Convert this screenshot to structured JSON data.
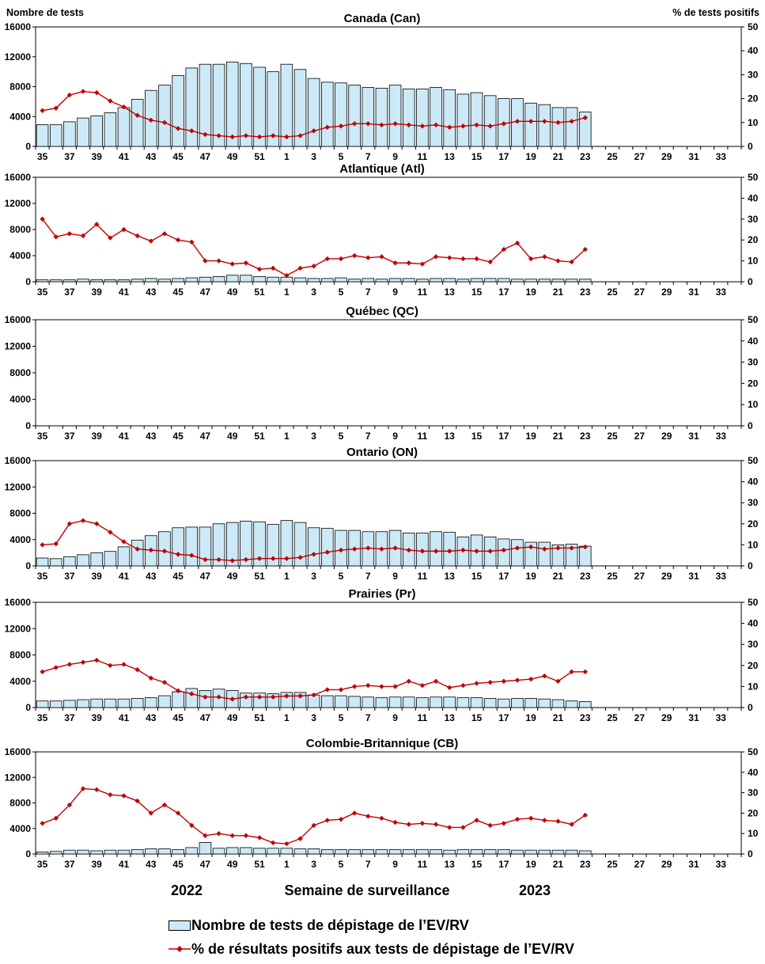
{
  "left_axis_title": "Nombre de tests",
  "right_axis_title": "% de tests positifs",
  "x_axis_title": "Semaine de surveillance",
  "year_start": "2022",
  "year_end": "2023",
  "legend": {
    "bars": "Nombre de tests de dépistage de l’EV/RV",
    "line": "% de résultats positifs aux tests de dépistage de l’EV/RV"
  },
  "colors": {
    "bar_fill": "#cce9f7",
    "bar_stroke": "#000000",
    "line": "#c00000"
  },
  "chart_data": [
    {
      "type": "bar+line",
      "title": "Canada (Can)",
      "categories": [
        35,
        36,
        37,
        38,
        39,
        40,
        41,
        42,
        43,
        44,
        45,
        46,
        47,
        48,
        49,
        50,
        51,
        52,
        1,
        2,
        3,
        4,
        5,
        6,
        7,
        8,
        9,
        10,
        11,
        12,
        13,
        14,
        15,
        16,
        17,
        18,
        19,
        20,
        21,
        22,
        23,
        24,
        25,
        26,
        27,
        28,
        29,
        30,
        31,
        32,
        33,
        34
      ],
      "x_tick_labels": [
        "35",
        "37",
        "39",
        "41",
        "43",
        "45",
        "47",
        "49",
        "51",
        "1",
        "3",
        "5",
        "7",
        "9",
        "11",
        "13",
        "15",
        "17",
        "19",
        "21",
        "23",
        "25",
        "27",
        "29",
        "31",
        "33"
      ],
      "left_ticks": [
        "0",
        "4000",
        "8000",
        "12000",
        "16000"
      ],
      "right_ticks": [
        "0",
        "10",
        "20",
        "30",
        "40",
        "50"
      ],
      "ylim_left": [
        0,
        16000
      ],
      "ylim_right": [
        0,
        50
      ],
      "tests": [
        2900,
        2900,
        3300,
        3800,
        4100,
        4500,
        5200,
        6300,
        7500,
        8200,
        9500,
        10500,
        11000,
        11000,
        11300,
        11100,
        10600,
        10000,
        11000,
        10300,
        9100,
        8600,
        8500,
        8200,
        7900,
        7800,
        8200,
        7700,
        7700,
        7900,
        7600,
        7000,
        7200,
        6800,
        6400,
        6400,
        5800,
        5600,
        5200,
        5200,
        4600
      ],
      "percent_positive": [
        15,
        16,
        21.5,
        23,
        22.5,
        19,
        16.5,
        13,
        11,
        10,
        7.5,
        6.5,
        5,
        4.5,
        4,
        4.5,
        4,
        4.5,
        4,
        4.5,
        6.5,
        8,
        8.5,
        9.5,
        9.5,
        9,
        9.5,
        9,
        8.5,
        9,
        8,
        8.5,
        9,
        8.5,
        9.5,
        10.5,
        10.5,
        10.5,
        10,
        10.5,
        12
      ]
    },
    {
      "type": "bar+line",
      "title": "Atlantique (Atl)",
      "categories": [
        35,
        36,
        37,
        38,
        39,
        40,
        41,
        42,
        43,
        44,
        45,
        46,
        47,
        48,
        49,
        50,
        51,
        52,
        1,
        2,
        3,
        4,
        5,
        6,
        7,
        8,
        9,
        10,
        11,
        12,
        13,
        14,
        15,
        16,
        17,
        18,
        19,
        20,
        21,
        22,
        23,
        24,
        25,
        26,
        27,
        28,
        29,
        30,
        31,
        32,
        33,
        34
      ],
      "x_tick_labels": [
        "35",
        "37",
        "39",
        "41",
        "43",
        "45",
        "47",
        "49",
        "51",
        "1",
        "3",
        "5",
        "7",
        "9",
        "11",
        "13",
        "15",
        "17",
        "19",
        "21",
        "23",
        "25",
        "27",
        "29",
        "31",
        "33"
      ],
      "left_ticks": [
        "0",
        "4000",
        "8000",
        "12000",
        "16000"
      ],
      "right_ticks": [
        "0",
        "10",
        "20",
        "30",
        "40",
        "50"
      ],
      "ylim_left": [
        0,
        16000
      ],
      "ylim_right": [
        0,
        50
      ],
      "tests": [
        300,
        300,
        300,
        400,
        300,
        300,
        300,
        400,
        500,
        400,
        500,
        600,
        700,
        800,
        1000,
        1000,
        800,
        700,
        700,
        600,
        500,
        500,
        600,
        400,
        500,
        400,
        500,
        500,
        400,
        500,
        500,
        400,
        500,
        500,
        500,
        400,
        400,
        400,
        400,
        400,
        400
      ],
      "percent_positive": [
        30,
        21.5,
        23,
        22,
        27.5,
        21,
        25,
        22,
        19.5,
        23,
        20,
        19,
        10,
        10,
        8.5,
        9,
        6,
        6.5,
        3,
        6.5,
        7.5,
        11,
        11,
        12.5,
        11.5,
        12,
        9,
        9,
        8.5,
        12,
        11.5,
        11,
        11,
        9.5,
        15.5,
        18.5,
        11,
        12,
        10,
        9.5,
        15.5
      ]
    },
    {
      "type": "bar+line",
      "title": "Québec (QC)",
      "categories": [
        35,
        36,
        37,
        38,
        39,
        40,
        41,
        42,
        43,
        44,
        45,
        46,
        47,
        48,
        49,
        50,
        51,
        52,
        1,
        2,
        3,
        4,
        5,
        6,
        7,
        8,
        9,
        10,
        11,
        12,
        13,
        14,
        15,
        16,
        17,
        18,
        19,
        20,
        21,
        22,
        23,
        24,
        25,
        26,
        27,
        28,
        29,
        30,
        31,
        32,
        33,
        34
      ],
      "x_tick_labels": [
        "35",
        "37",
        "39",
        "41",
        "43",
        "45",
        "47",
        "49",
        "51",
        "1",
        "3",
        "5",
        "7",
        "9",
        "11",
        "13",
        "15",
        "17",
        "19",
        "21",
        "23",
        "25",
        "27",
        "29",
        "31",
        "33"
      ],
      "left_ticks": [
        "0",
        "4000",
        "8000",
        "12000",
        "16000"
      ],
      "right_ticks": [
        "0",
        "10",
        "20",
        "30",
        "40",
        "50"
      ],
      "ylim_left": [
        0,
        16000
      ],
      "ylim_right": [
        0,
        50
      ],
      "tests": [],
      "percent_positive": []
    },
    {
      "type": "bar+line",
      "title": "Ontario (ON)",
      "categories": [
        35,
        36,
        37,
        38,
        39,
        40,
        41,
        42,
        43,
        44,
        45,
        46,
        47,
        48,
        49,
        50,
        51,
        52,
        1,
        2,
        3,
        4,
        5,
        6,
        7,
        8,
        9,
        10,
        11,
        12,
        13,
        14,
        15,
        16,
        17,
        18,
        19,
        20,
        21,
        22,
        23,
        24,
        25,
        26,
        27,
        28,
        29,
        30,
        31,
        32,
        33,
        34
      ],
      "x_tick_labels": [
        "35",
        "37",
        "39",
        "41",
        "43",
        "45",
        "47",
        "49",
        "51",
        "1",
        "3",
        "5",
        "7",
        "9",
        "11",
        "13",
        "15",
        "17",
        "19",
        "21",
        "23",
        "25",
        "27",
        "29",
        "31",
        "33"
      ],
      "left_ticks": [
        "0",
        "4000",
        "8000",
        "12000",
        "16000"
      ],
      "right_ticks": [
        "0",
        "10",
        "20",
        "30",
        "40",
        "50"
      ],
      "ylim_left": [
        0,
        16000
      ],
      "ylim_right": [
        0,
        50
      ],
      "tests": [
        1200,
        1100,
        1400,
        1700,
        2000,
        2200,
        2900,
        3900,
        4600,
        5200,
        5800,
        5900,
        5900,
        6400,
        6600,
        6800,
        6700,
        6300,
        6900,
        6600,
        5800,
        5700,
        5400,
        5400,
        5200,
        5200,
        5400,
        5000,
        5000,
        5200,
        5100,
        4400,
        4700,
        4400,
        4100,
        4000,
        3600,
        3600,
        3200,
        3300,
        3000
      ],
      "percent_positive": [
        10,
        10.5,
        20,
        21.5,
        20,
        16,
        11.5,
        8,
        7.5,
        7,
        5.5,
        5,
        3,
        3,
        2.5,
        3,
        3.5,
        3.5,
        3.5,
        4,
        5.5,
        6.5,
        7.5,
        8,
        8.5,
        8,
        8.5,
        7.5,
        7,
        7,
        7,
        7.5,
        7,
        7,
        7.5,
        8.5,
        9,
        8,
        8.5,
        8.5,
        9
      ]
    },
    {
      "type": "bar+line",
      "title": "Prairies (Pr)",
      "categories": [
        35,
        36,
        37,
        38,
        39,
        40,
        41,
        42,
        43,
        44,
        45,
        46,
        47,
        48,
        49,
        50,
        51,
        52,
        1,
        2,
        3,
        4,
        5,
        6,
        7,
        8,
        9,
        10,
        11,
        12,
        13,
        14,
        15,
        16,
        17,
        18,
        19,
        20,
        21,
        22,
        23,
        24,
        25,
        26,
        27,
        28,
        29,
        30,
        31,
        32,
        33,
        34
      ],
      "x_tick_labels": [
        "35",
        "37",
        "39",
        "41",
        "43",
        "45",
        "47",
        "49",
        "51",
        "1",
        "3",
        "5",
        "7",
        "9",
        "11",
        "13",
        "15",
        "17",
        "19",
        "21",
        "23",
        "25",
        "27",
        "29",
        "31",
        "33"
      ],
      "left_ticks": [
        "0",
        "4000",
        "8000",
        "12000",
        "16000"
      ],
      "right_ticks": [
        "0",
        "10",
        "20",
        "30",
        "40",
        "50"
      ],
      "ylim_left": [
        0,
        16000
      ],
      "ylim_right": [
        0,
        50
      ],
      "tests": [
        1000,
        1000,
        1100,
        1200,
        1300,
        1300,
        1300,
        1400,
        1500,
        1800,
        2400,
        2900,
        2600,
        2800,
        2600,
        2200,
        2200,
        2100,
        2300,
        2300,
        1900,
        1800,
        1800,
        1700,
        1600,
        1500,
        1600,
        1600,
        1500,
        1600,
        1600,
        1500,
        1500,
        1400,
        1300,
        1400,
        1400,
        1300,
        1200,
        1000,
        900
      ],
      "percent_positive": [
        17,
        19,
        20.5,
        21.5,
        22.5,
        20,
        20.5,
        18,
        14,
        12,
        8,
        6.5,
        5,
        5,
        4,
        5,
        5,
        5,
        5.5,
        5.5,
        6,
        8.5,
        8.5,
        10,
        10.5,
        10,
        10,
        12.5,
        10.5,
        12.5,
        9.5,
        10.5,
        11.5,
        12,
        12.5,
        13,
        13.5,
        15,
        12.5,
        17,
        17
      ]
    },
    {
      "type": "bar+line",
      "title": "Colombie-Britannique (CB)",
      "categories": [
        35,
        36,
        37,
        38,
        39,
        40,
        41,
        42,
        43,
        44,
        45,
        46,
        47,
        48,
        49,
        50,
        51,
        52,
        1,
        2,
        3,
        4,
        5,
        6,
        7,
        8,
        9,
        10,
        11,
        12,
        13,
        14,
        15,
        16,
        17,
        18,
        19,
        20,
        21,
        22,
        23,
        24,
        25,
        26,
        27,
        28,
        29,
        30,
        31,
        32,
        33,
        34
      ],
      "x_tick_labels": [
        "35",
        "37",
        "39",
        "41",
        "43",
        "45",
        "47",
        "49",
        "51",
        "1",
        "3",
        "5",
        "7",
        "9",
        "11",
        "13",
        "15",
        "17",
        "19",
        "21",
        "23",
        "25",
        "27",
        "29",
        "31",
        "33"
      ],
      "left_ticks": [
        "0",
        "4000",
        "8000",
        "12000",
        "16000"
      ],
      "right_ticks": [
        "0",
        "10",
        "20",
        "30",
        "40",
        "50"
      ],
      "ylim_left": [
        0,
        16000
      ],
      "ylim_right": [
        0,
        50
      ],
      "tests": [
        300,
        400,
        600,
        600,
        500,
        600,
        600,
        700,
        800,
        800,
        700,
        1000,
        1800,
        900,
        1000,
        1000,
        900,
        900,
        900,
        800,
        800,
        700,
        700,
        700,
        700,
        700,
        700,
        700,
        700,
        700,
        600,
        700,
        700,
        700,
        700,
        600,
        600,
        600,
        600,
        600,
        500
      ],
      "percent_positive": [
        15,
        17.5,
        24,
        32,
        31.5,
        29,
        28.5,
        26,
        20,
        24,
        20,
        14,
        9,
        10,
        9,
        9,
        8,
        5.5,
        5,
        7.5,
        14,
        16.5,
        17,
        20,
        18.5,
        17.5,
        15.5,
        14.5,
        15,
        14.5,
        13,
        13,
        16.5,
        14,
        15,
        17,
        17.5,
        16.5,
        16,
        14.5,
        19
      ]
    }
  ]
}
